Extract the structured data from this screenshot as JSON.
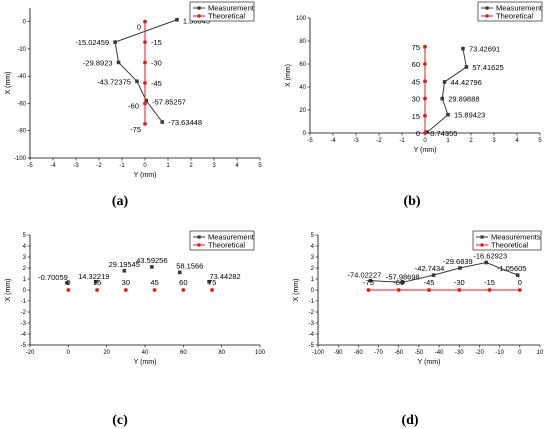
{
  "colors": {
    "measurement": "#3a3a3a",
    "theoretical": "#e8181c"
  },
  "chart_data": [
    {
      "panel_label": "(a)",
      "type": "line",
      "xlabel": "Y (mm)",
      "ylabel": "X (mm)",
      "xlim": [
        -5,
        5
      ],
      "ylim": [
        -100,
        10
      ],
      "xticks": [
        -5,
        -4,
        -3,
        -2,
        -1,
        0,
        1,
        2,
        3,
        4,
        5
      ],
      "yticks": [
        -100,
        -80,
        -60,
        -40,
        -20,
        0
      ],
      "legend": [
        "Measurement",
        "Theoretical"
      ],
      "series": [
        {
          "name": "Measurement",
          "line": true,
          "x": [
            1.38845,
            -1.3,
            -1.15,
            -0.35,
            0.05,
            0.75
          ],
          "y": [
            1.38845,
            -15.02459,
            -29.8923,
            -43.72375,
            -57.85257,
            -73.63448
          ],
          "labels": [
            "1.38845",
            "-15.02459",
            "-29.8923",
            "-43.72375",
            "-57.85257",
            "-73.63448"
          ]
        },
        {
          "name": "Theoretical",
          "line": true,
          "x": [
            0,
            0,
            0,
            0,
            0,
            0
          ],
          "y": [
            0,
            -15,
            -30,
            -45,
            -60,
            -75
          ],
          "labels": [
            "0",
            "-15",
            "-30",
            "-45",
            "-60",
            "-75"
          ]
        }
      ]
    },
    {
      "panel_label": "(b)",
      "type": "line",
      "xlabel": "Y (mm)",
      "ylabel": "X (mm)",
      "xlim": [
        -5,
        5
      ],
      "ylim": [
        0,
        100
      ],
      "xticks": [
        -5,
        -4,
        -3,
        -2,
        -1,
        0,
        1,
        2,
        3,
        4,
        5
      ],
      "yticks": [
        0,
        20,
        40,
        60,
        80,
        100
      ],
      "legend": [
        "Measurement",
        "Theoretical"
      ],
      "series": [
        {
          "name": "Measurement",
          "line": true,
          "x": [
            0.1,
            1.0,
            0.75,
            0.85,
            1.8,
            1.65
          ],
          "y": [
            0.74355,
            15.89423,
            29.89888,
            44.42796,
            57.41625,
            73.42691
          ],
          "labels": [
            "0.74355",
            "15.89423",
            "29.89888",
            "44.42796",
            "57.41625",
            "73.42691"
          ]
        },
        {
          "name": "Theoretical",
          "line": true,
          "x": [
            0,
            0,
            0,
            0,
            0,
            0
          ],
          "y": [
            0,
            15,
            30,
            45,
            60,
            75
          ],
          "labels": [
            "0",
            "15",
            "30",
            "45",
            "60",
            "75"
          ]
        }
      ]
    },
    {
      "panel_label": "(c)",
      "type": "scatter",
      "xlabel": "Y (mm)",
      "ylabel": "X (mm)",
      "xlim": [
        -20,
        100
      ],
      "ylim": [
        -5,
        5
      ],
      "xticks": [
        -20,
        0,
        20,
        40,
        60,
        80,
        100
      ],
      "yticks": [
        -5,
        -4,
        -3,
        -2,
        -1,
        0,
        1,
        2,
        3,
        4,
        5
      ],
      "legend": [
        "Measurement",
        "Theoretical"
      ],
      "series": [
        {
          "name": "Measurement",
          "line": false,
          "x": [
            -0.70059,
            14.32219,
            29.19545,
            43.59256,
            58.1566,
            73.44282
          ],
          "y": [
            0.65,
            0.75,
            1.75,
            2.1,
            1.6,
            0.75
          ],
          "labels": [
            "-0.70059",
            "14.32219",
            "29.19545",
            "43.59256",
            "58.1566",
            "73.44282"
          ]
        },
        {
          "name": "Theoretical",
          "line": false,
          "x": [
            0,
            15,
            30,
            45,
            60,
            75
          ],
          "y": [
            0,
            0,
            0,
            0,
            0,
            0
          ],
          "labels": [
            "0",
            "15",
            "30",
            "45",
            "60",
            "75"
          ]
        }
      ]
    },
    {
      "panel_label": "(d)",
      "type": "line",
      "xlabel": "Y (mm)",
      "ylabel": "X (mm)",
      "xlim": [
        -100,
        10
      ],
      "ylim": [
        -5,
        5
      ],
      "xticks": [
        -100,
        -90,
        -80,
        -70,
        -60,
        -50,
        -40,
        -30,
        -20,
        -10,
        0,
        10
      ],
      "yticks": [
        -5,
        -4,
        -3,
        -2,
        -1,
        0,
        1,
        2,
        3,
        4,
        5
      ],
      "legend": [
        "Measurements",
        "Theoretical"
      ],
      "series": [
        {
          "name": "Measurements",
          "line": true,
          "x": [
            -74.02227,
            -57.98698,
            -42.7434,
            -29.6839,
            -16.62923,
            -1.05605
          ],
          "y": [
            0.85,
            0.7,
            1.35,
            2.0,
            2.5,
            1.35
          ],
          "labels": [
            "-74.02227",
            "-57.98698",
            "-42.7434",
            "-29.6839",
            "-16.62923",
            "-1.05605"
          ]
        },
        {
          "name": "Theoretical",
          "line": true,
          "x": [
            -75,
            -60,
            -45,
            -30,
            -15,
            0
          ],
          "y": [
            0,
            0,
            0,
            0,
            0,
            0
          ],
          "labels": [
            "-75",
            "-60",
            "-45",
            "-30",
            "-15",
            "0"
          ]
        }
      ]
    }
  ]
}
